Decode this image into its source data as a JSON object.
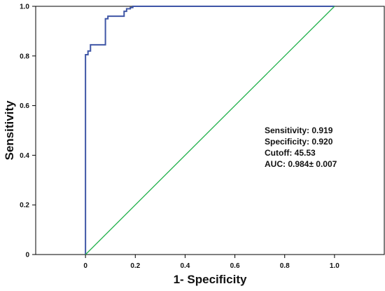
{
  "chart_data": {
    "type": "line",
    "xlabel": "1- Specificity",
    "ylabel": "Sensitivity",
    "xlim": [
      -0.2,
      1.2
    ],
    "ylim": [
      0,
      1.0
    ],
    "x_ticks": [
      0,
      0.2,
      0.4,
      0.6,
      0.8,
      1.0
    ],
    "x_tick_labels": [
      "0",
      "0.2",
      "0.4",
      "0.6",
      "0.8",
      "1.0"
    ],
    "y_ticks": [
      0,
      0.2,
      0.4,
      0.6,
      0.8,
      1.0
    ],
    "y_tick_labels": [
      "0",
      "0.2",
      "0.4",
      "0.6",
      "0.8",
      "1.0"
    ],
    "grid": false,
    "series": [
      {
        "color": "#3f56a6",
        "x": [
          0,
          0,
          0,
          0.01,
          0.01,
          0.02,
          0.02,
          0.08,
          0.08,
          0.09,
          0.09,
          0.155,
          0.155,
          0.165,
          0.165,
          0.18,
          0.18,
          0.19,
          0.19,
          1.0
        ],
        "y": [
          0,
          0.0,
          0.805,
          0.805,
          0.82,
          0.82,
          0.845,
          0.845,
          0.95,
          0.95,
          0.96,
          0.96,
          0.98,
          0.98,
          0.99,
          0.99,
          0.995,
          0.995,
          1.0,
          1.0
        ]
      },
      {
        "color": "#22b14c",
        "x": [
          0,
          1.0
        ],
        "y": [
          0,
          1.0
        ]
      }
    ],
    "annotations": [
      "Sensitivity: 0.919",
      "Specificity: 0.920",
      "Cutoff: 45.53",
      "AUC: 0.984± 0.007"
    ]
  }
}
